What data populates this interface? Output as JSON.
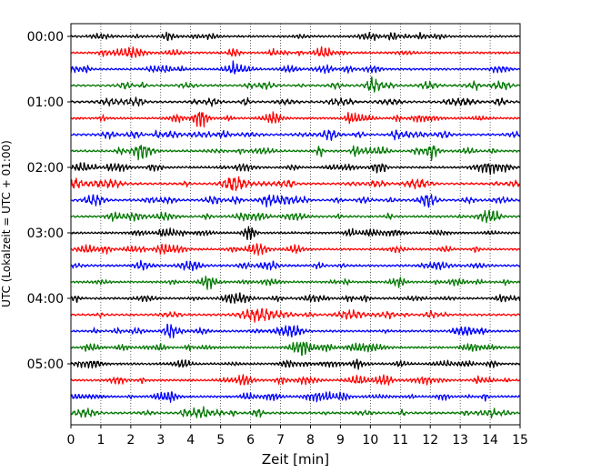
{
  "chart_data": {
    "type": "line",
    "title": "",
    "xlabel": "Zeit  [min]",
    "ylabel": "UTC (Lokalzeit = UTC + 01:00)",
    "xlim": [
      0,
      15
    ],
    "x_ticks": [
      0,
      1,
      2,
      3,
      4,
      5,
      6,
      7,
      8,
      9,
      10,
      11,
      12,
      13,
      14,
      15
    ],
    "x_tick_labels": [
      "0",
      "1",
      "2",
      "3",
      "4",
      "5",
      "6",
      "7",
      "8",
      "9",
      "10",
      "11",
      "12",
      "13",
      "14",
      "15"
    ],
    "y_tick_labels": [
      "00:00",
      "01:00",
      "02:00",
      "03:00",
      "04:00",
      "05:00"
    ],
    "grid": "vertical dotted",
    "traces_per_hour": 4,
    "trace_minutes": 15,
    "trace_colors": [
      "#000000",
      "#ff0000",
      "#0000ff",
      "#007700"
    ],
    "series": [
      {
        "start": "00:00",
        "color": "#000000"
      },
      {
        "start": "00:15",
        "color": "#ff0000"
      },
      {
        "start": "00:30",
        "color": "#0000ff"
      },
      {
        "start": "00:45",
        "color": "#007700"
      },
      {
        "start": "01:00",
        "color": "#000000"
      },
      {
        "start": "01:15",
        "color": "#ff0000"
      },
      {
        "start": "01:30",
        "color": "#0000ff"
      },
      {
        "start": "01:45",
        "color": "#007700"
      },
      {
        "start": "02:00",
        "color": "#000000"
      },
      {
        "start": "02:15",
        "color": "#ff0000"
      },
      {
        "start": "02:30",
        "color": "#0000ff"
      },
      {
        "start": "02:45",
        "color": "#007700"
      },
      {
        "start": "03:00",
        "color": "#000000"
      },
      {
        "start": "03:15",
        "color": "#ff0000"
      },
      {
        "start": "03:30",
        "color": "#0000ff"
      },
      {
        "start": "03:45",
        "color": "#007700"
      },
      {
        "start": "04:00",
        "color": "#000000"
      },
      {
        "start": "04:15",
        "color": "#ff0000"
      },
      {
        "start": "04:30",
        "color": "#0000ff"
      },
      {
        "start": "04:45",
        "color": "#007700"
      },
      {
        "start": "05:00",
        "color": "#000000"
      },
      {
        "start": "05:15",
        "color": "#ff0000"
      },
      {
        "start": "05:30",
        "color": "#0000ff"
      },
      {
        "start": "05:45",
        "color": "#007700"
      }
    ]
  }
}
